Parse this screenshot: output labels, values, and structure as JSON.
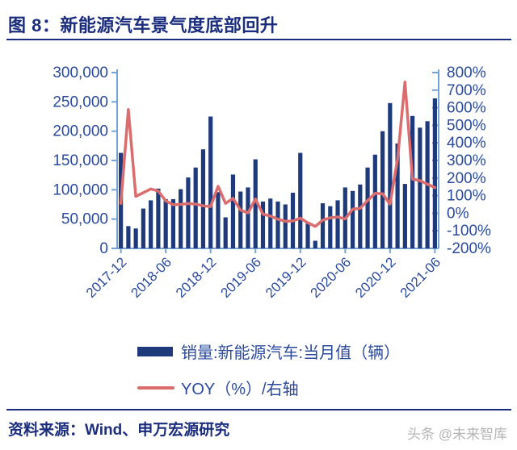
{
  "header": {
    "title": "图 8：新能源汽车景气度底部回升"
  },
  "footer": {
    "source": "资料来源：Wind、申万宏源研究",
    "watermark": "头条 @未来智库"
  },
  "colors": {
    "bar": "#1e3a7a",
    "line": "#dc6d6e",
    "axis_line": "#76a3d6",
    "axis_label": "#2a4a9d",
    "title": "#1b2d7d",
    "watermark": "#b5b5b5"
  },
  "chart_data": {
    "type": "bar",
    "subtype": "bar+line dual axis",
    "grid": false,
    "legend_position": "bottom",
    "categories": [
      "2017-12",
      "2018-01",
      "2018-02",
      "2018-03",
      "2018-04",
      "2018-05",
      "2018-06",
      "2018-07",
      "2018-08",
      "2018-09",
      "2018-10",
      "2018-11",
      "2018-12",
      "2019-01",
      "2019-02",
      "2019-03",
      "2019-04",
      "2019-05",
      "2019-06",
      "2019-07",
      "2019-08",
      "2019-09",
      "2019-10",
      "2019-11",
      "2019-12",
      "2020-01",
      "2020-02",
      "2020-03",
      "2020-04",
      "2020-05",
      "2020-06",
      "2020-07",
      "2020-08",
      "2020-09",
      "2020-10",
      "2020-11",
      "2020-12",
      "2021-01",
      "2021-02",
      "2021-03",
      "2021-04",
      "2021-05",
      "2021-06"
    ],
    "series": [
      {
        "name": "销量:新能源汽车:当月值（辆）",
        "type": "bar",
        "axis": "left",
        "values": [
          163000,
          38000,
          34000,
          68000,
          82000,
          102000,
          84000,
          84000,
          101000,
          121000,
          138000,
          169000,
          225000,
          96000,
          53000,
          126000,
          97000,
          104000,
          152000,
          80000,
          85000,
          80000,
          75000,
          95000,
          163000,
          44000,
          13000,
          77000,
          72000,
          82000,
          104000,
          98000,
          109000,
          138000,
          160000,
          200000,
          248000,
          179000,
          110000,
          226000,
          206000,
          217000,
          256000
        ]
      },
      {
        "name": "YOY（%）/右轴",
        "type": "line",
        "axis": "right",
        "values": [
          56,
          590,
          96,
          117,
          138,
          126,
          70,
          48,
          50,
          55,
          52,
          42,
          38,
          153,
          56,
          85,
          18,
          2,
          81,
          -5,
          -16,
          -34,
          -46,
          -44,
          -28,
          -54,
          -75,
          -39,
          -26,
          -21,
          -32,
          23,
          28,
          73,
          113,
          111,
          52,
          307,
          746,
          194,
          186,
          165,
          146
        ]
      }
    ],
    "left_axis": {
      "min": 0,
      "max": 300000,
      "tick_step": 50000,
      "tick_labels": [
        "300,000",
        "250,000",
        "200,000",
        "150,000",
        "100,000",
        "50,000",
        "0"
      ]
    },
    "right_axis": {
      "min": -200,
      "max": 800,
      "tick_step": 100,
      "tick_labels": [
        "800%",
        "700%",
        "600%",
        "500%",
        "400%",
        "300%",
        "200%",
        "100%",
        "0%",
        "-100%",
        "-200%"
      ]
    },
    "x_tick_labels": [
      "2017-12",
      "2018-06",
      "2018-12",
      "2019-06",
      "2019-12",
      "2020-06",
      "2020-12",
      "2021-06"
    ],
    "x_tick_indices": [
      0,
      6,
      12,
      18,
      24,
      30,
      36,
      42
    ]
  }
}
